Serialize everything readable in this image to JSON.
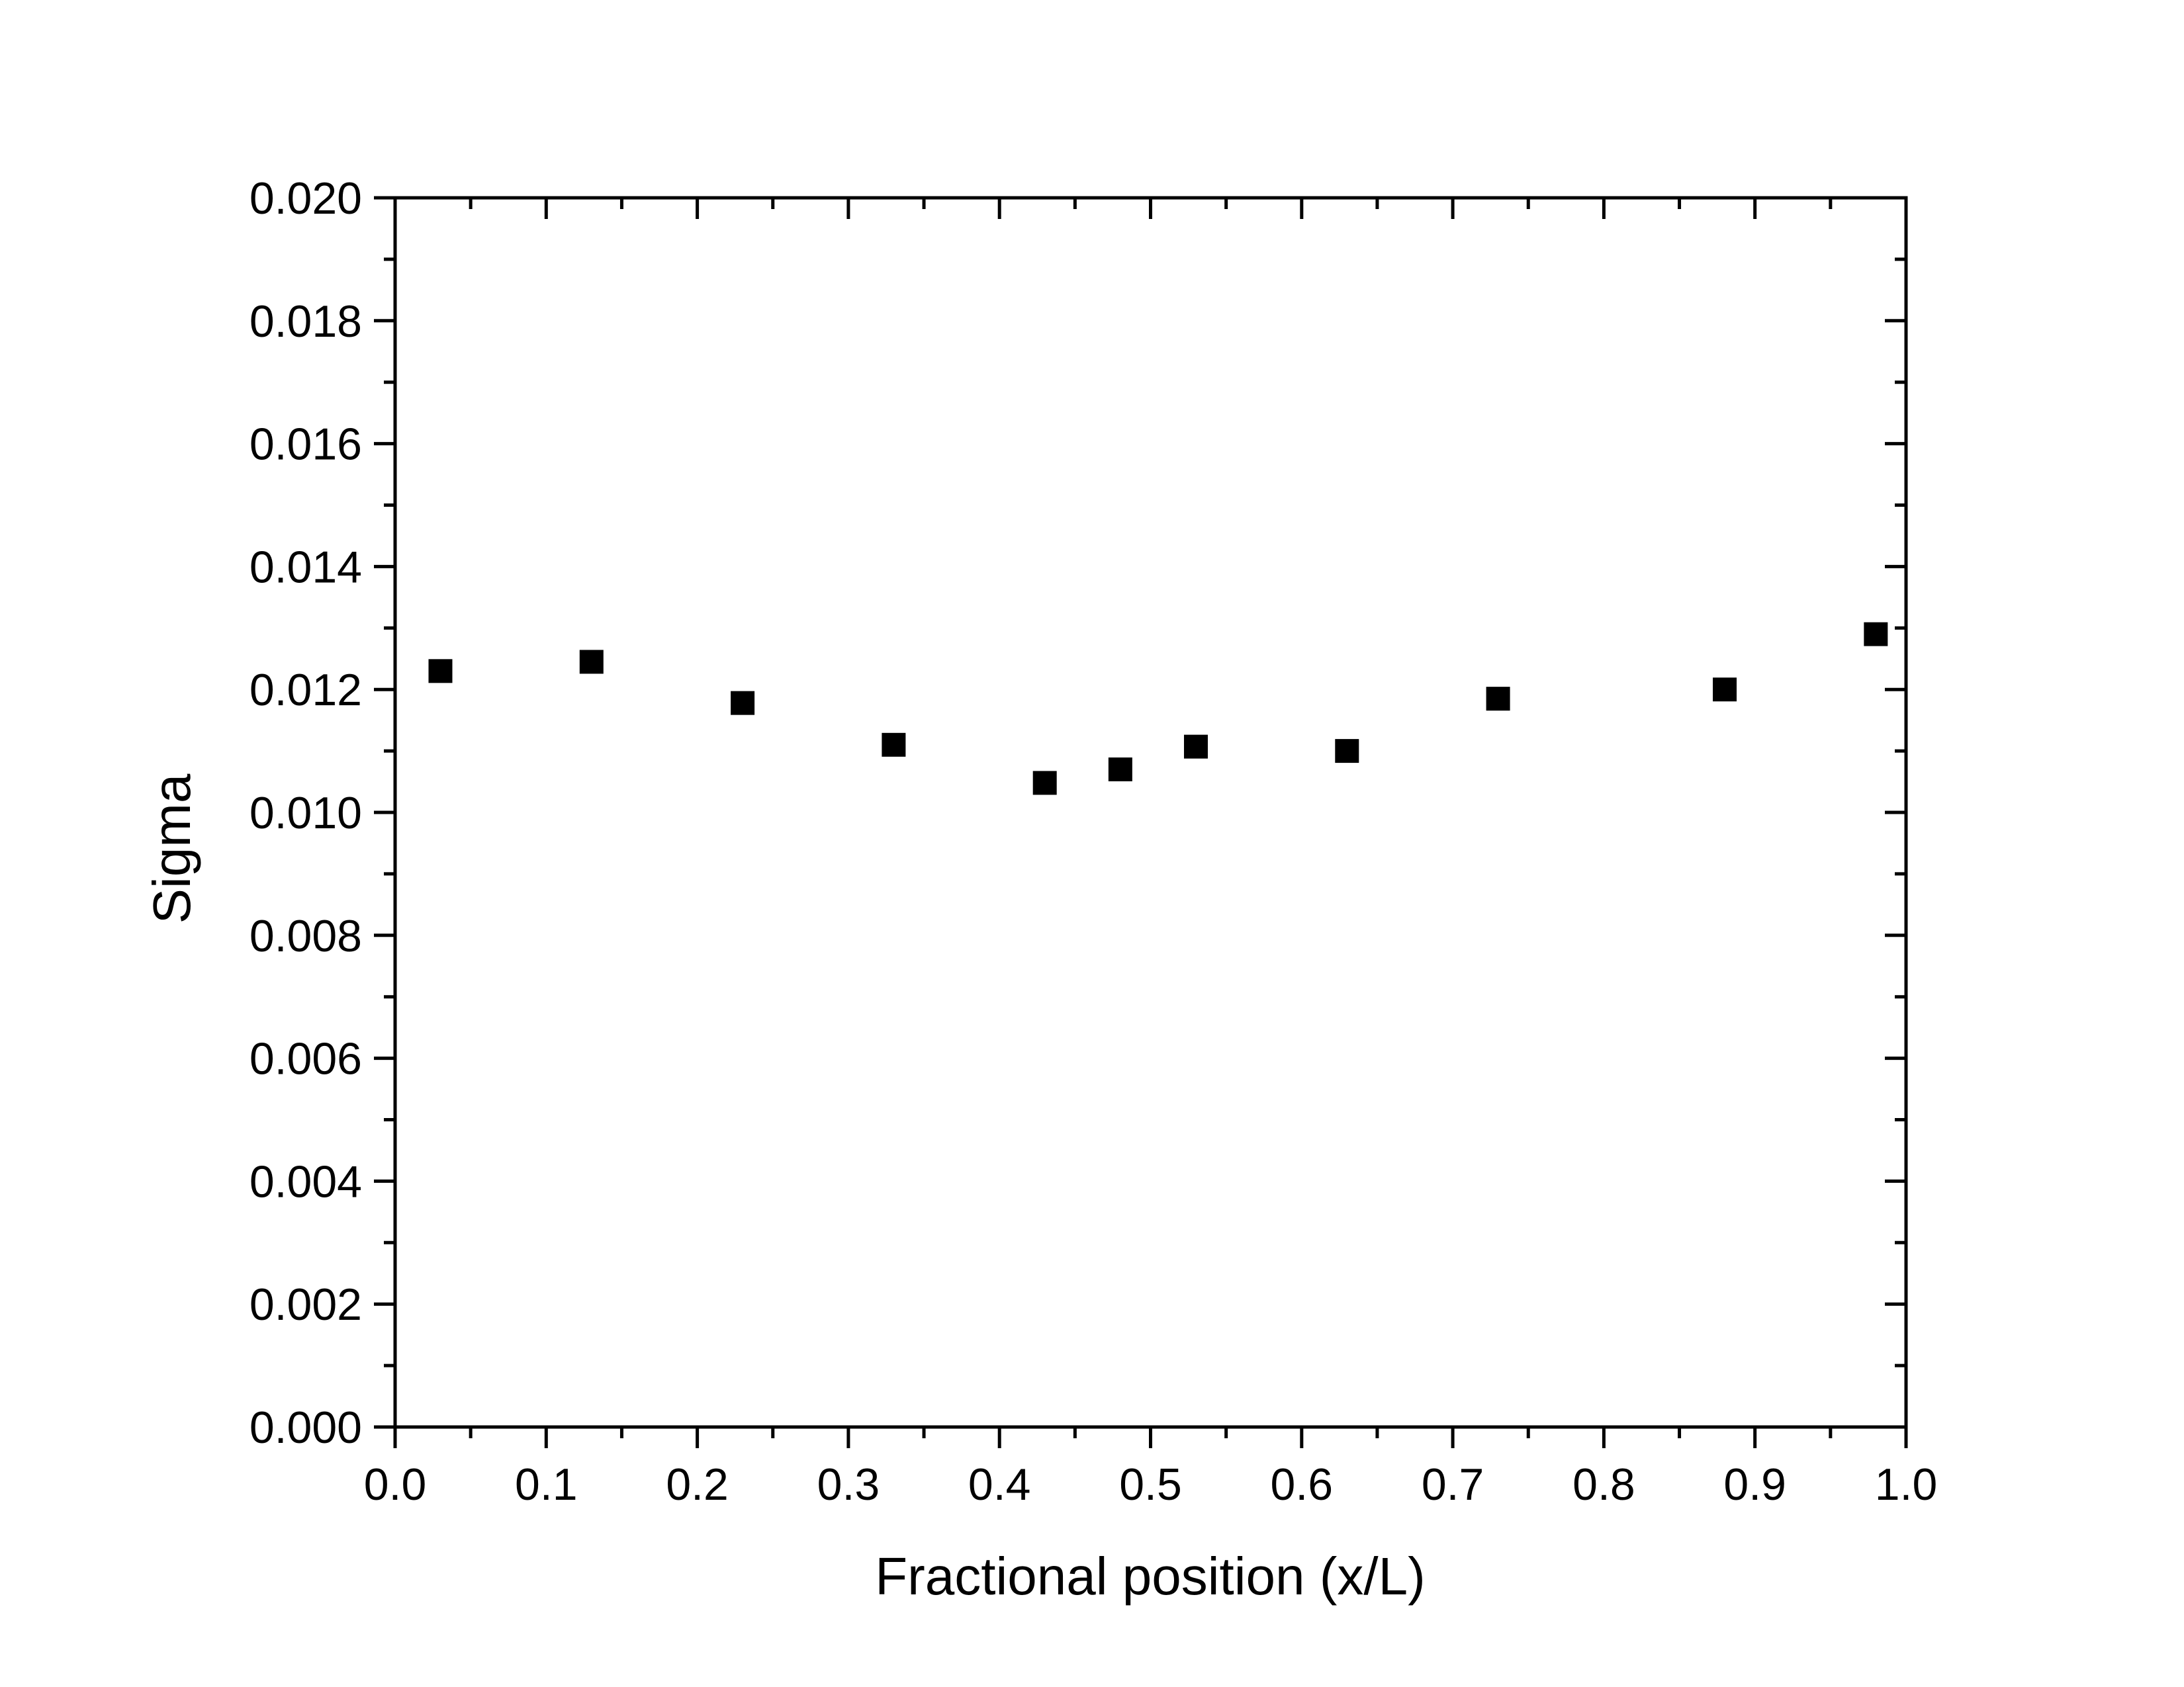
{
  "chart_data": {
    "type": "scatter",
    "title": "",
    "xlabel": "Fractional position (x/L)",
    "ylabel": "Sigma",
    "xlim": [
      0.0,
      1.0
    ],
    "ylim": [
      0.0,
      0.02
    ],
    "x_ticks": [
      "0.0",
      "0.1",
      "0.2",
      "0.3",
      "0.4",
      "0.5",
      "0.6",
      "0.7",
      "0.8",
      "0.9",
      "1.0"
    ],
    "y_ticks": [
      "0.000",
      "0.002",
      "0.004",
      "0.006",
      "0.008",
      "0.010",
      "0.012",
      "0.014",
      "0.016",
      "0.018",
      "0.020"
    ],
    "grid": false,
    "legend": "none",
    "marker": "filled-square",
    "marker_color": "#000000",
    "series": [
      {
        "x": [
          0.03,
          0.13,
          0.23,
          0.33,
          0.43,
          0.48,
          0.53,
          0.63,
          0.73,
          0.88,
          0.98
        ],
        "y": [
          0.0123,
          0.01245,
          0.01178,
          0.0111,
          0.01048,
          0.0107,
          0.01107,
          0.011,
          0.01185,
          0.012,
          0.0129
        ]
      }
    ]
  }
}
